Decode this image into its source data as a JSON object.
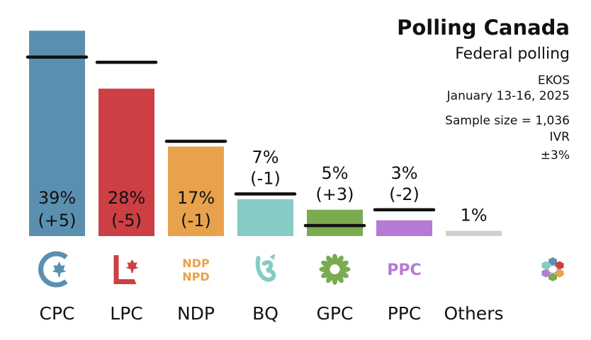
{
  "header": {
    "title": "Polling Canada",
    "subtitle": "Federal polling",
    "pollster": "EKOS",
    "dates": "January 13-16, 2025",
    "sample": "Sample size = 1,036",
    "method": "IVR",
    "moe": "±3%"
  },
  "chart_data": {
    "type": "bar",
    "categories": [
      "CPC",
      "LPC",
      "NDP",
      "BQ",
      "GPC",
      "PPC",
      "Others"
    ],
    "values": [
      39,
      28,
      17,
      7,
      5,
      3,
      1
    ],
    "value_labels": [
      "39%",
      "28%",
      "17%",
      "7%",
      "5%",
      "3%",
      "1%"
    ],
    "change_labels": [
      "(+5)",
      "(-5)",
      "(-1)",
      "(-1)",
      "(+3)",
      "(-2)",
      ""
    ],
    "previous_values": [
      34,
      33,
      18,
      8,
      2,
      5,
      null
    ],
    "colors": [
      "#5b8fb0",
      "#cc3f43",
      "#e8a24c",
      "#86cbc5",
      "#7bab4f",
      "#b57ad4",
      "#cfcfcf"
    ],
    "ylim": [
      0,
      40
    ],
    "icons": [
      "cpc-logo-icon",
      "lpc-logo-icon",
      "ndp-logo-icon",
      "bq-logo-icon",
      "gpc-logo-icon",
      "ppc-logo-icon",
      "",
      "polling-canada-logo-icon"
    ],
    "logo_text": {
      "ndp": "NDP",
      "npd": "NPD",
      "ppc": "PPC"
    }
  }
}
